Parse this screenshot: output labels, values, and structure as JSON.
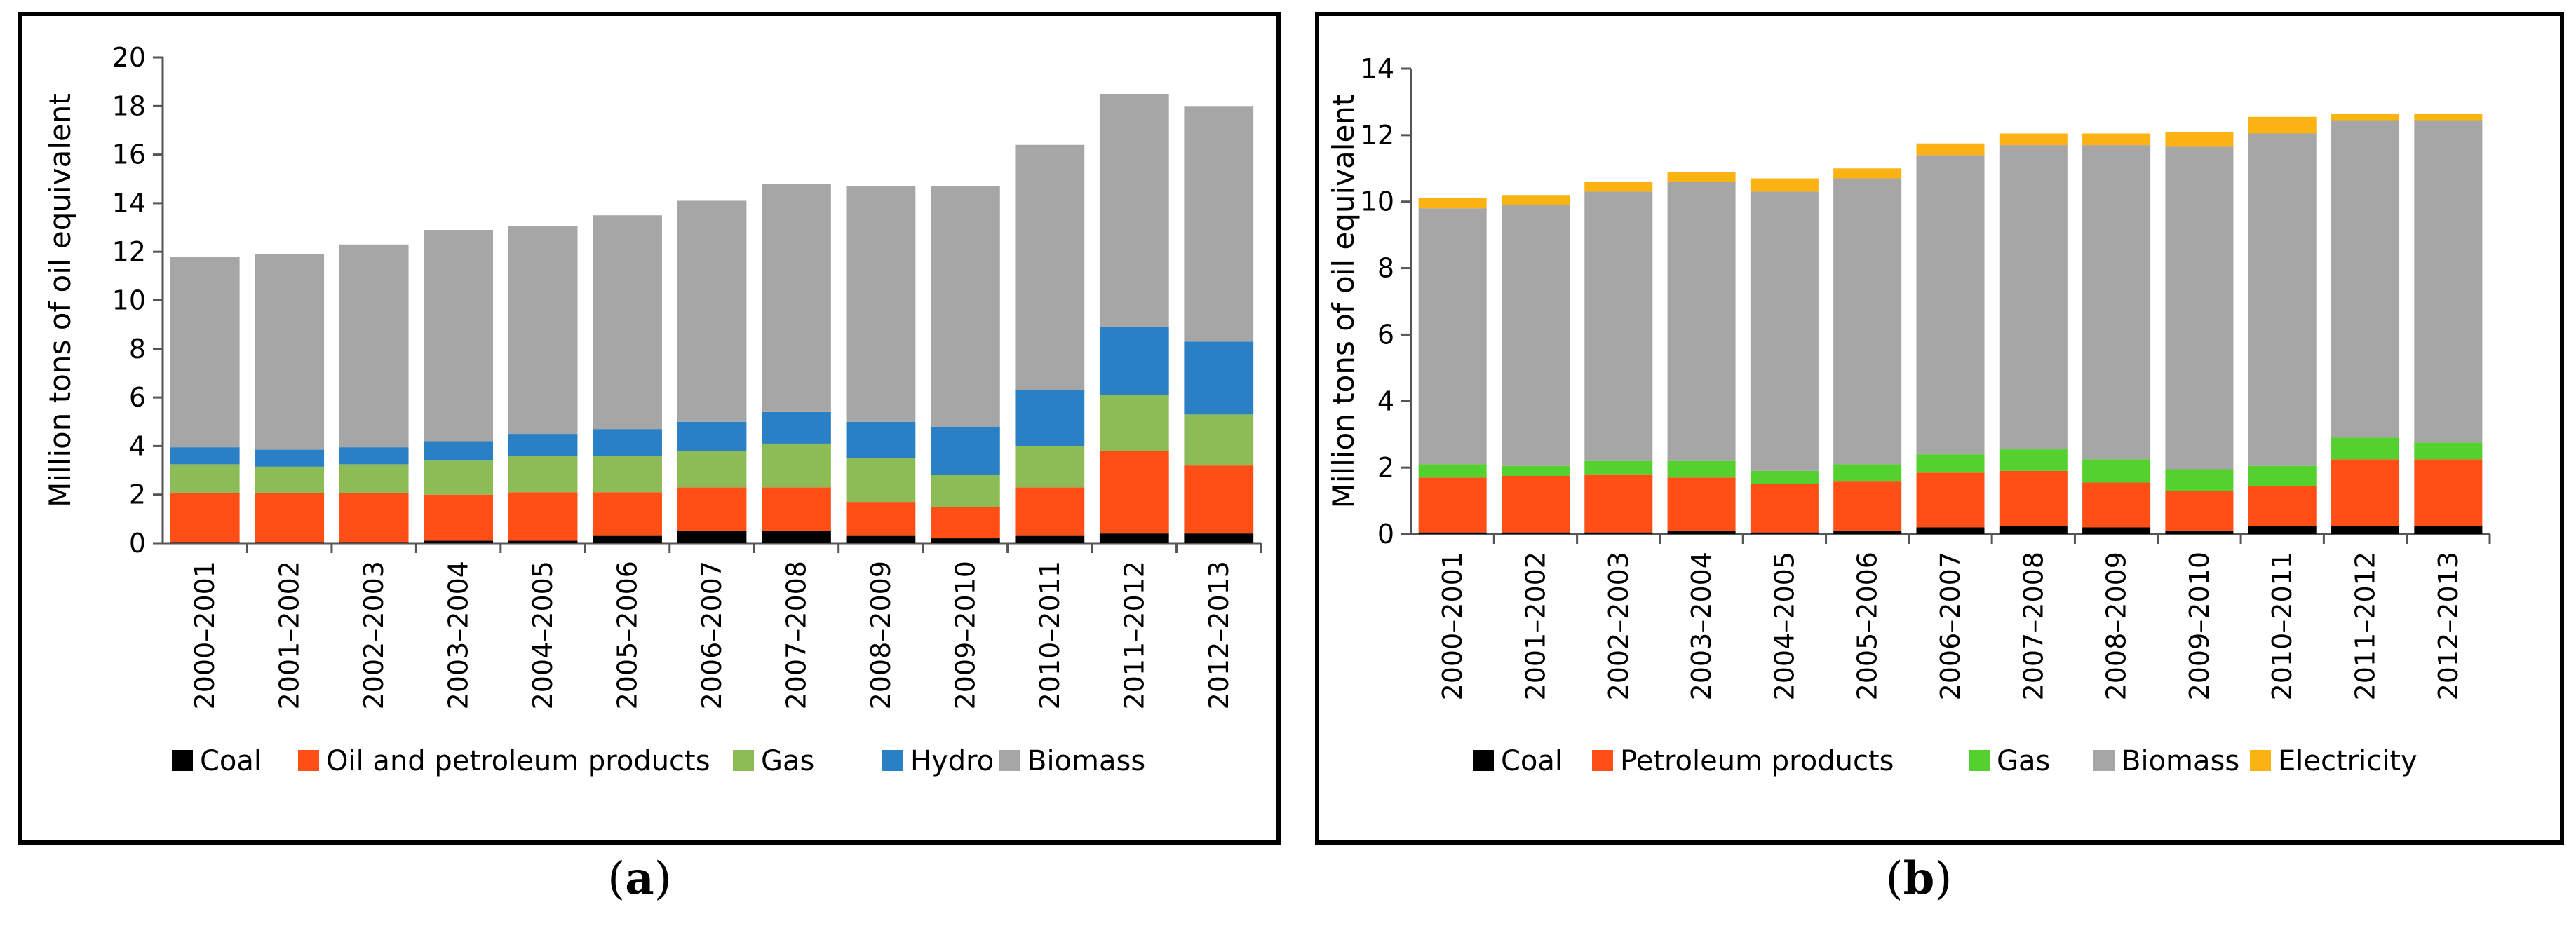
{
  "chart_data": [
    {
      "id": "a",
      "type": "bar",
      "stacked": true,
      "panel_label": "(a)",
      "panel_letter": "a",
      "ylabel": "Million tons of oil equivalent",
      "xlabel": "",
      "ylim": [
        0,
        20
      ],
      "ytick_step": 2,
      "legend_placement": "bottom",
      "categories": [
        "2000–2001",
        "2001–2002",
        "2002–2003",
        "2003–2004",
        "2004–2005",
        "2005–2006",
        "2006–2007",
        "2007–2008",
        "2008–2009",
        "2009–2010",
        "2010–2011",
        "2011–2012",
        "2012–2013"
      ],
      "series": [
        {
          "name": "Coal",
          "color": "#000000",
          "values": [
            0.05,
            0.05,
            0.05,
            0.1,
            0.1,
            0.3,
            0.5,
            0.5,
            0.3,
            0.2,
            0.3,
            0.4,
            0.4
          ]
        },
        {
          "name": "Oil and petroleum products",
          "color": "#ff4f17",
          "values": [
            2.0,
            2.0,
            2.0,
            1.9,
            2.0,
            1.8,
            1.8,
            1.8,
            1.4,
            1.3,
            2.0,
            3.4,
            2.8
          ]
        },
        {
          "name": "Gas",
          "color": "#8dbc56",
          "values": [
            1.2,
            1.1,
            1.2,
            1.4,
            1.5,
            1.5,
            1.5,
            1.8,
            1.8,
            1.3,
            1.7,
            2.3,
            2.1
          ]
        },
        {
          "name": "Hydro",
          "color": "#2a80c4",
          "values": [
            0.7,
            0.7,
            0.7,
            0.8,
            0.9,
            1.1,
            1.2,
            1.3,
            1.5,
            2.0,
            2.3,
            2.8,
            3.0
          ]
        },
        {
          "name": "Biomass",
          "color": "#a6a6a6",
          "values": [
            7.85,
            8.05,
            8.35,
            8.7,
            8.55,
            8.8,
            9.1,
            9.4,
            9.7,
            9.9,
            10.1,
            9.6,
            9.7
          ]
        }
      ]
    },
    {
      "id": "b",
      "type": "bar",
      "stacked": true,
      "panel_label": "(b)",
      "panel_letter": "b",
      "ylabel": "Million tons of oil equivalent",
      "xlabel": "",
      "ylim": [
        0,
        14
      ],
      "ytick_step": 2,
      "legend_placement": "bottom",
      "categories": [
        "2000–2001",
        "2001–2002",
        "2002–2003",
        "2003–2004",
        "2004–2005",
        "2005–2006",
        "2006–2007",
        "2007–2008",
        "2008–2009",
        "2009–2010",
        "2010–2011",
        "2011–2012",
        "2012–2013"
      ],
      "series": [
        {
          "name": "Coal",
          "color": "#000000",
          "values": [
            0.05,
            0.05,
            0.05,
            0.1,
            0.05,
            0.1,
            0.2,
            0.25,
            0.2,
            0.1,
            0.25,
            0.25,
            0.25
          ]
        },
        {
          "name": "Petroleum products",
          "color": "#ff4f17",
          "values": [
            1.65,
            1.7,
            1.75,
            1.6,
            1.45,
            1.5,
            1.65,
            1.65,
            1.35,
            1.2,
            1.2,
            2.0,
            2.0
          ]
        },
        {
          "name": "Gas",
          "color": "#54d12e",
          "values": [
            0.4,
            0.3,
            0.4,
            0.5,
            0.4,
            0.5,
            0.55,
            0.65,
            0.7,
            0.65,
            0.6,
            0.65,
            0.5
          ]
        },
        {
          "name": "Biomass",
          "color": "#a6a6a6",
          "values": [
            7.7,
            7.85,
            8.1,
            8.4,
            8.4,
            8.6,
            9.0,
            9.15,
            9.45,
            9.7,
            10.0,
            9.55,
            9.7
          ]
        },
        {
          "name": "Electricity",
          "color": "#fbb313",
          "values": [
            0.3,
            0.3,
            0.3,
            0.3,
            0.4,
            0.3,
            0.35,
            0.35,
            0.35,
            0.45,
            0.5,
            0.2,
            0.2
          ]
        }
      ]
    }
  ]
}
